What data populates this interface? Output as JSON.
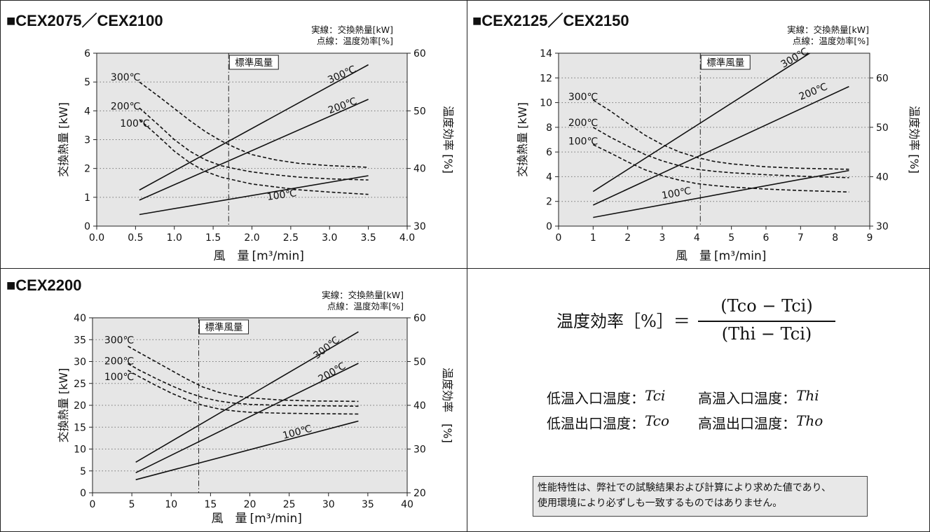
{
  "chart_data": [
    {
      "type": "line",
      "title": "■CEX2075／CEX2100",
      "note_solid": "実線：交換熱量[kW]",
      "note_dashed": "点線：温度効率[%]",
      "xlabel": "風　量",
      "xunit": "[m³/min]",
      "ylabel": "交換熱量 [kW]",
      "y2label": "温度効率 [%]",
      "xlim": [
        0.0,
        4.0
      ],
      "ylim": [
        0,
        6
      ],
      "y2lim": [
        30,
        60
      ],
      "xticks": [
        "0.0",
        "0.5",
        "1.0",
        "1.5",
        "2.0",
        "2.5",
        "3.0",
        "3.5",
        "4.0"
      ],
      "yticks": [
        "0",
        "1",
        "2",
        "3",
        "4",
        "5",
        "6"
      ],
      "y2ticks": [
        "30",
        "40",
        "50",
        "60"
      ],
      "standard_airflow": 1.7,
      "standard_label": "標準風量",
      "grid": true,
      "series": [
        {
          "name": "300℃",
          "style": "solid",
          "axis": "left",
          "x": [
            0.55,
            3.5
          ],
          "y": [
            1.25,
            5.6
          ]
        },
        {
          "name": "200℃",
          "style": "solid",
          "axis": "left",
          "x": [
            0.55,
            3.5
          ],
          "y": [
            0.9,
            4.4
          ]
        },
        {
          "name": "100℃",
          "style": "solid",
          "axis": "left",
          "x": [
            0.55,
            3.5
          ],
          "y": [
            0.4,
            1.75
          ]
        },
        {
          "name": "300℃",
          "style": "dashed",
          "axis": "right",
          "x": [
            0.55,
            0.8,
            1.0,
            1.2,
            1.4,
            1.6,
            1.8,
            2.0,
            2.3,
            2.6,
            3.0,
            3.5
          ],
          "y": [
            55,
            52.5,
            50.4,
            48.3,
            46.4,
            44.8,
            43.5,
            42.4,
            41.5,
            40.9,
            40.5,
            40.2
          ]
        },
        {
          "name": "200℃",
          "style": "dashed",
          "axis": "right",
          "x": [
            0.55,
            0.8,
            1.0,
            1.2,
            1.4,
            1.6,
            1.8,
            2.0,
            2.3,
            2.6,
            3.0,
            3.5
          ],
          "y": [
            50.5,
            47.5,
            45.0,
            43.0,
            41.5,
            40.5,
            39.9,
            39.4,
            38.9,
            38.5,
            38.2,
            38.0
          ]
        },
        {
          "name": "100℃",
          "style": "dashed",
          "axis": "right",
          "x": [
            0.55,
            0.8,
            1.0,
            1.2,
            1.4,
            1.6,
            1.8,
            2.0,
            2.3,
            2.6,
            3.0,
            3.5
          ],
          "y": [
            48.5,
            45.5,
            43.0,
            41.0,
            39.5,
            38.5,
            37.9,
            37.3,
            36.8,
            36.3,
            35.9,
            35.5
          ]
        }
      ],
      "labels": [
        {
          "text": "300℃",
          "x": 3.0,
          "y": 4.95,
          "angle": -24
        },
        {
          "text": "200℃",
          "x": 3.0,
          "y": 3.9,
          "angle": -20
        },
        {
          "text": "100℃",
          "x": 2.2,
          "y": 0.9,
          "angle": -8
        },
        {
          "text": "300℃",
          "x": 0.18,
          "y": 5.05,
          "angle": 0
        },
        {
          "text": "200℃",
          "x": 0.18,
          "y": 4.05,
          "angle": 0
        },
        {
          "text": "100℃",
          "x": 0.3,
          "y": 3.45,
          "angle": 0
        }
      ]
    },
    {
      "type": "line",
      "title": "■CEX2125／CEX2150",
      "note_solid": "実線：交換熱量[kW]",
      "note_dashed": "点線：温度効率[%]",
      "xlabel": "風　量",
      "xunit": "[m³/min]",
      "ylabel": "交換熱量 [kW]",
      "y2label": "温度効率 [%]",
      "xlim": [
        0,
        9
      ],
      "ylim": [
        0,
        14
      ],
      "y2lim": [
        30,
        65
      ],
      "xticks": [
        "0",
        "1",
        "2",
        "3",
        "4",
        "5",
        "6",
        "7",
        "8",
        "9"
      ],
      "yticks": [
        "0",
        "2",
        "4",
        "6",
        "8",
        "10",
        "12",
        "14"
      ],
      "y2ticks": [
        "30",
        "40",
        "50",
        "60"
      ],
      "standard_airflow": 4.1,
      "standard_label": "標準風量",
      "grid": true,
      "series": [
        {
          "name": "300℃",
          "style": "solid",
          "axis": "left",
          "x": [
            1.0,
            7.6
          ],
          "y": [
            2.8,
            14.6
          ]
        },
        {
          "name": "200℃",
          "style": "solid",
          "axis": "left",
          "x": [
            1.0,
            8.4
          ],
          "y": [
            1.7,
            11.3
          ]
        },
        {
          "name": "100℃",
          "style": "solid",
          "axis": "left",
          "x": [
            1.0,
            8.4
          ],
          "y": [
            0.7,
            4.5
          ]
        },
        {
          "name": "300℃",
          "style": "dashed",
          "axis": "right",
          "x": [
            1.0,
            1.5,
            2.0,
            2.5,
            3.0,
            3.5,
            4.0,
            4.5,
            5.0,
            6.0,
            7.0,
            8.4
          ],
          "y": [
            55.5,
            53.3,
            50.8,
            48.4,
            46.5,
            45.0,
            43.9,
            43.1,
            42.6,
            42.0,
            41.7,
            41.5
          ]
        },
        {
          "name": "200℃",
          "style": "dashed",
          "axis": "right",
          "x": [
            1.0,
            1.5,
            2.0,
            2.5,
            3.0,
            3.5,
            4.0,
            4.5,
            5.0,
            6.0,
            7.0,
            8.4
          ],
          "y": [
            50.0,
            48.0,
            46.2,
            44.5,
            43.2,
            42.2,
            41.5,
            41.1,
            40.8,
            40.4,
            40.1,
            39.8
          ]
        },
        {
          "name": "100℃",
          "style": "dashed",
          "axis": "right",
          "x": [
            1.0,
            1.5,
            2.0,
            2.5,
            3.0,
            3.5,
            4.0,
            4.5,
            5.0,
            6.0,
            7.0,
            8.4
          ],
          "y": [
            46.5,
            44.8,
            43.0,
            41.4,
            40.2,
            39.3,
            38.6,
            38.2,
            37.9,
            37.5,
            37.2,
            36.9
          ]
        }
      ],
      "labels": [
        {
          "text": "300℃",
          "x": 6.5,
          "y": 12.8,
          "angle": -30
        },
        {
          "text": "200℃",
          "x": 7.0,
          "y": 10.2,
          "angle": -22
        },
        {
          "text": "100℃",
          "x": 3.0,
          "y": 2.2,
          "angle": -10
        },
        {
          "text": "300℃",
          "x": 0.28,
          "y": 10.2,
          "angle": 0
        },
        {
          "text": "200℃",
          "x": 0.28,
          "y": 8.1,
          "angle": 0
        },
        {
          "text": "100℃",
          "x": 0.28,
          "y": 6.6,
          "angle": 0
        }
      ]
    },
    {
      "type": "line",
      "title": "■CEX2200",
      "note_solid": "実線：交換熱量[kW]",
      "note_dashed": "点線：温度効率[%]",
      "xlabel": "風　量",
      "xunit": "[m³/min]",
      "ylabel": "交換熱量 [kW]",
      "y2label": "温度効率　[%]",
      "xlim": [
        0,
        40
      ],
      "ylim": [
        0,
        40
      ],
      "y2lim": [
        20,
        60
      ],
      "xticks": [
        "0",
        "5",
        "10",
        "15",
        "20",
        "25",
        "30",
        "35",
        "40"
      ],
      "yticks": [
        "0",
        "5",
        "10",
        "15",
        "20",
        "25",
        "30",
        "35",
        "40"
      ],
      "y2ticks": [
        "20",
        "30",
        "40",
        "50",
        "60"
      ],
      "standard_airflow": 13.5,
      "standard_label": "標準風量",
      "grid": true,
      "series": [
        {
          "name": "300℃",
          "style": "solid",
          "axis": "left",
          "x": [
            5.5,
            33.8
          ],
          "y": [
            7.0,
            36.8
          ]
        },
        {
          "name": "200℃",
          "style": "solid",
          "axis": "left",
          "x": [
            5.5,
            33.8
          ],
          "y": [
            4.6,
            29.6
          ]
        },
        {
          "name": "100℃",
          "style": "solid",
          "axis": "left",
          "x": [
            5.5,
            33.8
          ],
          "y": [
            3.0,
            16.4
          ]
        },
        {
          "name": "300℃",
          "style": "dashed",
          "axis": "right",
          "x": [
            4.5,
            6,
            8,
            10,
            12,
            14,
            16,
            18,
            20,
            24,
            28,
            33.8
          ],
          "y": [
            53.5,
            52.0,
            50.0,
            48.0,
            46.0,
            44.2,
            43.0,
            42.2,
            41.7,
            41.2,
            41.0,
            40.9
          ]
        },
        {
          "name": "200℃",
          "style": "dashed",
          "axis": "right",
          "x": [
            4.5,
            6,
            8,
            10,
            12,
            14,
            16,
            18,
            20,
            24,
            28,
            33.8
          ],
          "y": [
            49.5,
            48.0,
            46.2,
            44.5,
            43.0,
            41.8,
            41.0,
            40.5,
            40.2,
            40.0,
            39.9,
            39.8
          ]
        },
        {
          "name": "100℃",
          "style": "dashed",
          "axis": "right",
          "x": [
            4.5,
            6,
            8,
            10,
            12,
            14,
            16,
            18,
            20,
            24,
            28,
            33.8
          ],
          "y": [
            48.0,
            46.5,
            44.6,
            42.8,
            41.3,
            40.0,
            39.2,
            38.7,
            38.4,
            38.2,
            38.1,
            38.0
          ]
        }
      ],
      "labels": [
        {
          "text": "300℃",
          "x": 28.5,
          "y": 30.5,
          "angle": -38
        },
        {
          "text": "200℃",
          "x": 29.0,
          "y": 25.2,
          "angle": -30
        },
        {
          "text": "100℃",
          "x": 24.3,
          "y": 12.3,
          "angle": -15
        },
        {
          "text": "300℃",
          "x": 1.5,
          "y": 34.2,
          "angle": 0
        },
        {
          "text": "200℃",
          "x": 1.5,
          "y": 29.4,
          "angle": 0
        },
        {
          "text": "100℃",
          "x": 1.5,
          "y": 25.8,
          "angle": 0
        }
      ]
    }
  ],
  "formula": {
    "lhs": "温度効率［%］＝",
    "numerator": "(Tco − Tci)",
    "denominator": "(Thi − Tci)"
  },
  "legend": [
    {
      "label": "低温入口温度：",
      "symbol": "Tci"
    },
    {
      "label": "高温入口温度：",
      "symbol": "Thi"
    },
    {
      "label": "低温出口温度：",
      "symbol": "Tco"
    },
    {
      "label": "高温出口温度：",
      "symbol": "Tho"
    }
  ],
  "notice": {
    "line1": "性能特性は、弊社での試験結果および計算により求めた値であり、",
    "line2": "使用環境により必ずしも一致するものではありません。"
  }
}
